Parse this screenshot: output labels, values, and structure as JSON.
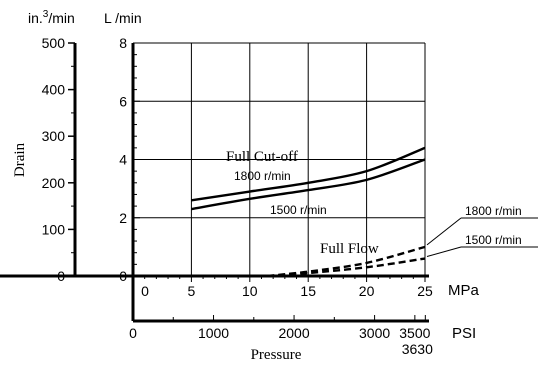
{
  "chart_data": {
    "type": "line",
    "title": "",
    "x_primary": {
      "unit": "MPa",
      "ticks": [
        "0",
        "5",
        "10",
        "15",
        "20",
        "25"
      ],
      "range": [
        0,
        25
      ]
    },
    "x_secondary": {
      "unit": "PSI",
      "ticks": [
        "0",
        "1000",
        "2000",
        "3000",
        "3500"
      ],
      "extra_tick": "3630"
    },
    "xlabel": "Pressure",
    "y_left": {
      "unit_prefix": "in.",
      "unit_superscript": "3",
      "unit_suffix": "/min",
      "label": "Drain",
      "ticks": [
        "0",
        "100",
        "200",
        "300",
        "400",
        "500"
      ],
      "range": [
        0,
        500
      ]
    },
    "y_right": {
      "unit": "L /min",
      "ticks": [
        "0",
        "2",
        "4",
        "6",
        "8"
      ],
      "range": [
        0,
        8
      ]
    },
    "group_labels": [
      "Full Cut-off",
      "Full Flow"
    ],
    "series": [
      {
        "name": "1800 r/min",
        "group": "Full Cut-off",
        "style": "solid",
        "x_mpa": [
          5,
          10,
          15,
          20,
          25
        ],
        "y_lpm": [
          2.6,
          2.9,
          3.2,
          3.6,
          4.4
        ]
      },
      {
        "name": "1500 r/min",
        "group": "Full Cut-off",
        "style": "solid",
        "x_mpa": [
          5,
          10,
          15,
          20,
          25
        ],
        "y_lpm": [
          2.3,
          2.65,
          2.95,
          3.3,
          4.0
        ]
      },
      {
        "name": "1800 r/min",
        "group": "Full Flow",
        "style": "dashed",
        "x_mpa": [
          11.5,
          15,
          20,
          25
        ],
        "y_lpm": [
          0.0,
          0.15,
          0.45,
          1.0
        ]
      },
      {
        "name": "1500 r/min",
        "group": "Full Flow",
        "style": "dashed",
        "x_mpa": [
          11.5,
          15,
          20,
          25
        ],
        "y_lpm": [
          0.0,
          0.1,
          0.3,
          0.6
        ]
      }
    ],
    "grid": true
  }
}
